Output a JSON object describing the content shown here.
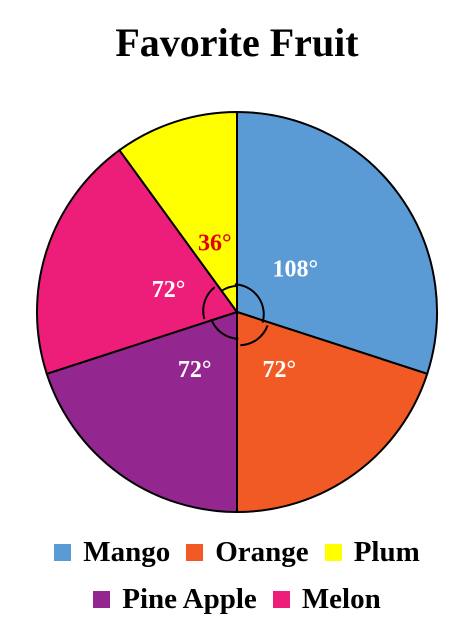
{
  "chart_data": {
    "type": "pie",
    "title": "Favorite Fruit",
    "unit": "degrees",
    "slices": [
      {
        "name": "Mango",
        "value": 108,
        "label": "108°",
        "color": "#5b9bd5",
        "label_color": "#ffffff"
      },
      {
        "name": "Orange",
        "value": 72,
        "label": "72°",
        "color": "#f15a24",
        "label_color": "#ffffff"
      },
      {
        "name": "Pine Apple",
        "value": 72,
        "label": "72°",
        "color": "#93278f",
        "label_color": "#ffffff"
      },
      {
        "name": "Melon",
        "value": 72,
        "label": "72°",
        "color": "#ed1e79",
        "label_color": "#ffffff"
      },
      {
        "name": "Plum",
        "value": 36,
        "label": "36°",
        "color": "#ffff00",
        "label_color": "#e00000"
      }
    ],
    "legend": {
      "placement": "bottom",
      "rows": [
        [
          {
            "name": "Mango",
            "color": "#5b9bd5"
          },
          {
            "name": "Orange",
            "color": "#f15a24"
          },
          {
            "name": "Plum",
            "color": "#ffff00"
          }
        ],
        [
          {
            "name": "Pine Apple",
            "color": "#93278f"
          },
          {
            "name": "Melon",
            "color": "#ed1e79"
          }
        ]
      ]
    }
  }
}
